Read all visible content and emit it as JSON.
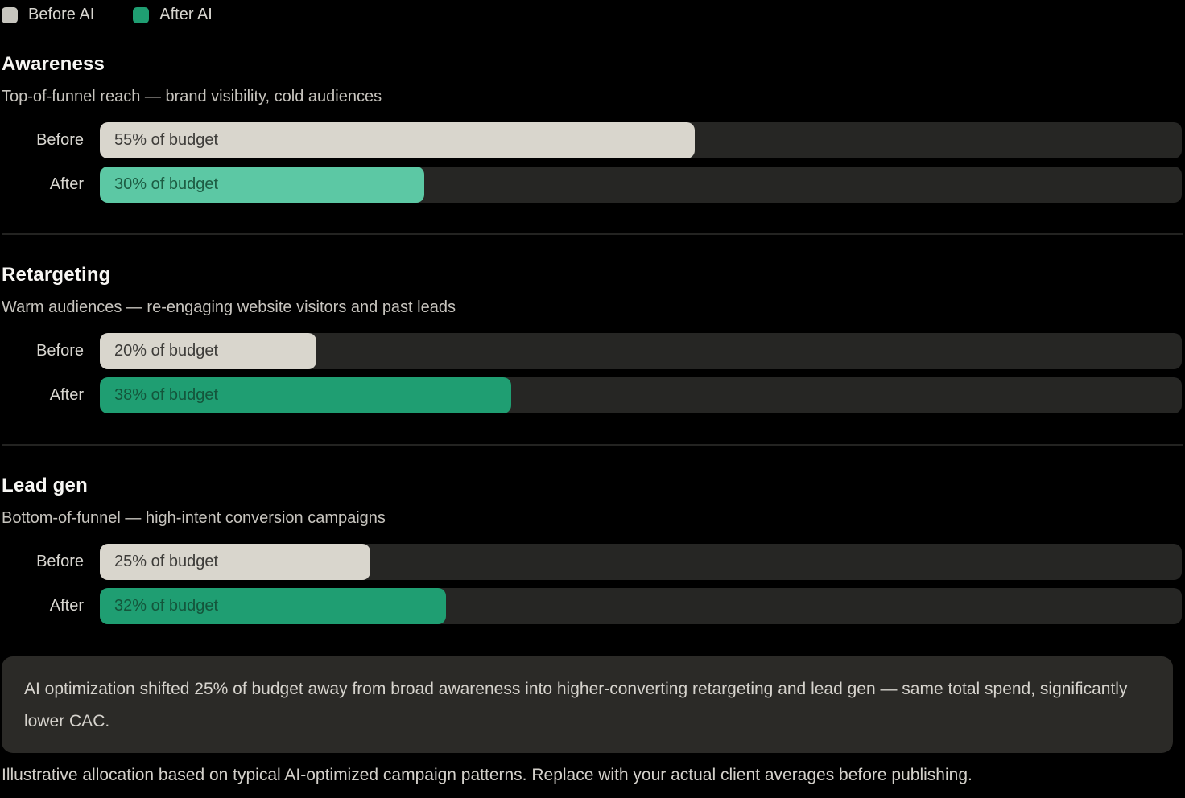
{
  "colors": {
    "background": "#000000",
    "track": "#262624",
    "separator": "#232321",
    "note_background": "#2b2a27",
    "before_fill": "#d9d6cd",
    "after_fill_light": "#5cc8a4",
    "after_fill_dark": "#1f9e72"
  },
  "legend": {
    "items": [
      {
        "label": "Before AI",
        "color": "#c7c5be"
      },
      {
        "label": "After AI",
        "color": "#1f9e72"
      }
    ]
  },
  "sections": [
    {
      "title": "Awareness",
      "subtitle": "Top-of-funnel reach — brand visibility, cold audiences",
      "rows": [
        {
          "label": "Before",
          "value_label": "55% of budget",
          "percent": 55,
          "fill": "#d9d6cd",
          "text_color": "#3d3c39"
        },
        {
          "label": "After",
          "value_label": "30% of budget",
          "percent": 30,
          "fill": "#5cc8a4",
          "text_color": "#1d5c43"
        }
      ]
    },
    {
      "title": "Retargeting",
      "subtitle": "Warm audiences — re-engaging website visitors and past leads",
      "rows": [
        {
          "label": "Before",
          "value_label": "20% of budget",
          "percent": 20,
          "fill": "#d9d6cd",
          "text_color": "#3d3c39"
        },
        {
          "label": "After",
          "value_label": "38% of budget",
          "percent": 38,
          "fill": "#1f9e72",
          "text_color": "#14553b"
        }
      ]
    },
    {
      "title": "Lead gen",
      "subtitle": "Bottom-of-funnel — high-intent conversion campaigns",
      "rows": [
        {
          "label": "Before",
          "value_label": "25% of budget",
          "percent": 25,
          "fill": "#d9d6cd",
          "text_color": "#3d3c39"
        },
        {
          "label": "After",
          "value_label": "32% of budget",
          "percent": 32,
          "fill": "#1f9e72",
          "text_color": "#14553b"
        }
      ]
    }
  ],
  "note": "AI optimization shifted 25% of budget away from broad awareness into higher-converting retargeting and lead gen — same total spend, significantly lower CAC.",
  "footer": "Illustrative allocation based on typical AI-optimized campaign patterns. Replace with your actual client averages before publishing.",
  "chart_data": {
    "type": "bar",
    "orientation": "horizontal",
    "unit": "% of budget",
    "categories": [
      "Awareness",
      "Retargeting",
      "Lead gen"
    ],
    "category_descriptions": [
      "Top-of-funnel reach — brand visibility, cold audiences",
      "Warm audiences — re-engaging website visitors and past leads",
      "Bottom-of-funnel — high-intent conversion campaigns"
    ],
    "series": [
      {
        "name": "Before AI",
        "values": [
          55,
          20,
          25
        ]
      },
      {
        "name": "After AI",
        "values": [
          30,
          38,
          32
        ]
      }
    ],
    "value_range": [
      0,
      100
    ],
    "grid": false,
    "legend_position": "top-left",
    "data_labels": [
      "55% of budget",
      "30% of budget",
      "20% of budget",
      "38% of budget",
      "25% of budget",
      "32% of budget"
    ]
  }
}
